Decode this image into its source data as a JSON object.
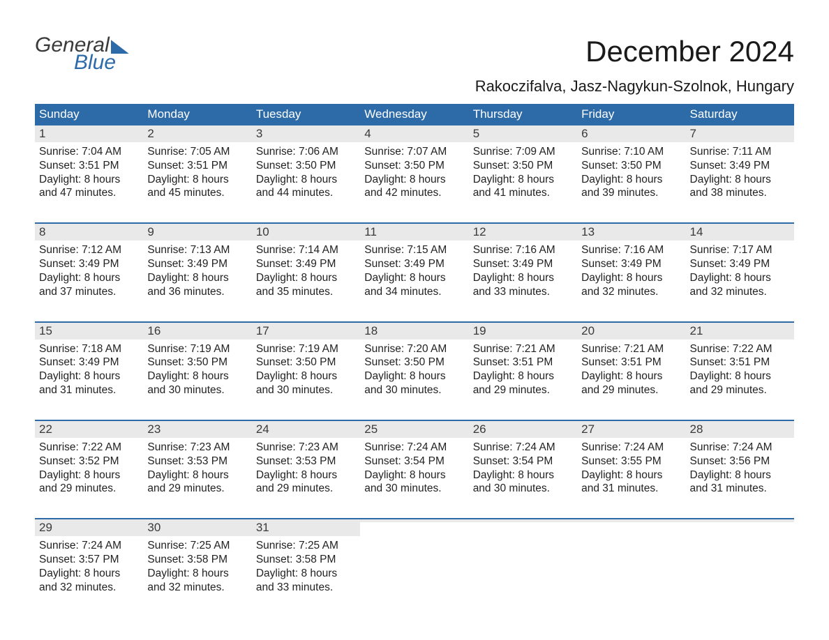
{
  "logo": {
    "line1": "General",
    "line2": "Blue"
  },
  "title": "December 2024",
  "subtitle": "Rakoczifalva, Jasz-Nagykun-Szolnok, Hungary",
  "colors": {
    "accent": "#2d6aa8",
    "daynum_bg": "#e9e9e9",
    "text": "#222222",
    "header_text": "#ffffff",
    "background": "#ffffff"
  },
  "typography": {
    "title_fontsize_pt": 32,
    "subtitle_fontsize_pt": 17,
    "header_fontsize_pt": 13,
    "body_fontsize_pt": 12
  },
  "weekdays": [
    "Sunday",
    "Monday",
    "Tuesday",
    "Wednesday",
    "Thursday",
    "Friday",
    "Saturday"
  ],
  "weeks": [
    [
      {
        "n": "1",
        "sr": "Sunrise: 7:04 AM",
        "ss": "Sunset: 3:51 PM",
        "d1": "Daylight: 8 hours",
        "d2": "and 47 minutes."
      },
      {
        "n": "2",
        "sr": "Sunrise: 7:05 AM",
        "ss": "Sunset: 3:51 PM",
        "d1": "Daylight: 8 hours",
        "d2": "and 45 minutes."
      },
      {
        "n": "3",
        "sr": "Sunrise: 7:06 AM",
        "ss": "Sunset: 3:50 PM",
        "d1": "Daylight: 8 hours",
        "d2": "and 44 minutes."
      },
      {
        "n": "4",
        "sr": "Sunrise: 7:07 AM",
        "ss": "Sunset: 3:50 PM",
        "d1": "Daylight: 8 hours",
        "d2": "and 42 minutes."
      },
      {
        "n": "5",
        "sr": "Sunrise: 7:09 AM",
        "ss": "Sunset: 3:50 PM",
        "d1": "Daylight: 8 hours",
        "d2": "and 41 minutes."
      },
      {
        "n": "6",
        "sr": "Sunrise: 7:10 AM",
        "ss": "Sunset: 3:50 PM",
        "d1": "Daylight: 8 hours",
        "d2": "and 39 minutes."
      },
      {
        "n": "7",
        "sr": "Sunrise: 7:11 AM",
        "ss": "Sunset: 3:49 PM",
        "d1": "Daylight: 8 hours",
        "d2": "and 38 minutes."
      }
    ],
    [
      {
        "n": "8",
        "sr": "Sunrise: 7:12 AM",
        "ss": "Sunset: 3:49 PM",
        "d1": "Daylight: 8 hours",
        "d2": "and 37 minutes."
      },
      {
        "n": "9",
        "sr": "Sunrise: 7:13 AM",
        "ss": "Sunset: 3:49 PM",
        "d1": "Daylight: 8 hours",
        "d2": "and 36 minutes."
      },
      {
        "n": "10",
        "sr": "Sunrise: 7:14 AM",
        "ss": "Sunset: 3:49 PM",
        "d1": "Daylight: 8 hours",
        "d2": "and 35 minutes."
      },
      {
        "n": "11",
        "sr": "Sunrise: 7:15 AM",
        "ss": "Sunset: 3:49 PM",
        "d1": "Daylight: 8 hours",
        "d2": "and 34 minutes."
      },
      {
        "n": "12",
        "sr": "Sunrise: 7:16 AM",
        "ss": "Sunset: 3:49 PM",
        "d1": "Daylight: 8 hours",
        "d2": "and 33 minutes."
      },
      {
        "n": "13",
        "sr": "Sunrise: 7:16 AM",
        "ss": "Sunset: 3:49 PM",
        "d1": "Daylight: 8 hours",
        "d2": "and 32 minutes."
      },
      {
        "n": "14",
        "sr": "Sunrise: 7:17 AM",
        "ss": "Sunset: 3:49 PM",
        "d1": "Daylight: 8 hours",
        "d2": "and 32 minutes."
      }
    ],
    [
      {
        "n": "15",
        "sr": "Sunrise: 7:18 AM",
        "ss": "Sunset: 3:49 PM",
        "d1": "Daylight: 8 hours",
        "d2": "and 31 minutes."
      },
      {
        "n": "16",
        "sr": "Sunrise: 7:19 AM",
        "ss": "Sunset: 3:50 PM",
        "d1": "Daylight: 8 hours",
        "d2": "and 30 minutes."
      },
      {
        "n": "17",
        "sr": "Sunrise: 7:19 AM",
        "ss": "Sunset: 3:50 PM",
        "d1": "Daylight: 8 hours",
        "d2": "and 30 minutes."
      },
      {
        "n": "18",
        "sr": "Sunrise: 7:20 AM",
        "ss": "Sunset: 3:50 PM",
        "d1": "Daylight: 8 hours",
        "d2": "and 30 minutes."
      },
      {
        "n": "19",
        "sr": "Sunrise: 7:21 AM",
        "ss": "Sunset: 3:51 PM",
        "d1": "Daylight: 8 hours",
        "d2": "and 29 minutes."
      },
      {
        "n": "20",
        "sr": "Sunrise: 7:21 AM",
        "ss": "Sunset: 3:51 PM",
        "d1": "Daylight: 8 hours",
        "d2": "and 29 minutes."
      },
      {
        "n": "21",
        "sr": "Sunrise: 7:22 AM",
        "ss": "Sunset: 3:51 PM",
        "d1": "Daylight: 8 hours",
        "d2": "and 29 minutes."
      }
    ],
    [
      {
        "n": "22",
        "sr": "Sunrise: 7:22 AM",
        "ss": "Sunset: 3:52 PM",
        "d1": "Daylight: 8 hours",
        "d2": "and 29 minutes."
      },
      {
        "n": "23",
        "sr": "Sunrise: 7:23 AM",
        "ss": "Sunset: 3:53 PM",
        "d1": "Daylight: 8 hours",
        "d2": "and 29 minutes."
      },
      {
        "n": "24",
        "sr": "Sunrise: 7:23 AM",
        "ss": "Sunset: 3:53 PM",
        "d1": "Daylight: 8 hours",
        "d2": "and 29 minutes."
      },
      {
        "n": "25",
        "sr": "Sunrise: 7:24 AM",
        "ss": "Sunset: 3:54 PM",
        "d1": "Daylight: 8 hours",
        "d2": "and 30 minutes."
      },
      {
        "n": "26",
        "sr": "Sunrise: 7:24 AM",
        "ss": "Sunset: 3:54 PM",
        "d1": "Daylight: 8 hours",
        "d2": "and 30 minutes."
      },
      {
        "n": "27",
        "sr": "Sunrise: 7:24 AM",
        "ss": "Sunset: 3:55 PM",
        "d1": "Daylight: 8 hours",
        "d2": "and 31 minutes."
      },
      {
        "n": "28",
        "sr": "Sunrise: 7:24 AM",
        "ss": "Sunset: 3:56 PM",
        "d1": "Daylight: 8 hours",
        "d2": "and 31 minutes."
      }
    ],
    [
      {
        "n": "29",
        "sr": "Sunrise: 7:24 AM",
        "ss": "Sunset: 3:57 PM",
        "d1": "Daylight: 8 hours",
        "d2": "and 32 minutes."
      },
      {
        "n": "30",
        "sr": "Sunrise: 7:25 AM",
        "ss": "Sunset: 3:58 PM",
        "d1": "Daylight: 8 hours",
        "d2": "and 32 minutes."
      },
      {
        "n": "31",
        "sr": "Sunrise: 7:25 AM",
        "ss": "Sunset: 3:58 PM",
        "d1": "Daylight: 8 hours",
        "d2": "and 33 minutes."
      },
      null,
      null,
      null,
      null
    ]
  ]
}
